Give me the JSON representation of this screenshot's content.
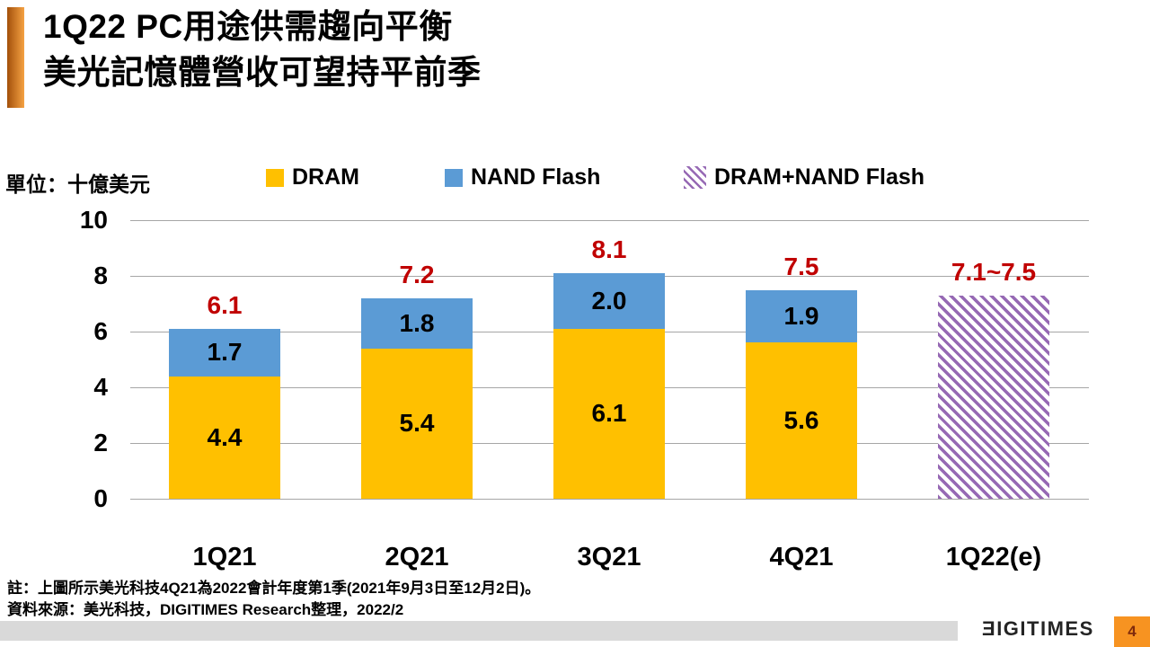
{
  "slide": {
    "title_line1": "1Q22 PC用途供需趨向平衡",
    "title_line2": "美光記憶體營收可望持平前季",
    "footnote_note": "註：上圖所示美光科技4Q21為2022會計年度第1季(2021年9月3日至12月2日)。",
    "footnote_source": "資料來源：美光科技，DIGITIMES Research整理，2022/2",
    "footer": {
      "logo_glyph": "Ǝ",
      "logo_text": "IGITIMES",
      "page_number": "4"
    }
  },
  "colors": {
    "dram": "#FFC000",
    "nand": "#5B9BD5",
    "total_label": "#C00000",
    "hatch_stripe": "#9669B4",
    "grid": "#A6A6A6",
    "accent_dark": "#A3500A",
    "accent_light": "#F5A243",
    "footer_bar": "#D9D9D9",
    "page_box": "#F79321",
    "page_number": "#7F2A0C",
    "logo": "#242424"
  },
  "chart_data": {
    "type": "bar",
    "stacked": true,
    "title": "",
    "ylabel": "單位：十億美元",
    "xlabel": "",
    "ylim": [
      0,
      10
    ],
    "yticks": [
      0,
      2,
      4,
      6,
      8,
      10
    ],
    "grid": true,
    "legend_position": "top",
    "categories": [
      "1Q21",
      "2Q21",
      "3Q21",
      "4Q21",
      "1Q22(e)"
    ],
    "series": [
      {
        "name": "DRAM",
        "style": "solid",
        "values": [
          4.4,
          5.4,
          6.1,
          5.6,
          null
        ],
        "labels": [
          "4.4",
          "5.4",
          "6.1",
          "5.6",
          null
        ]
      },
      {
        "name": "NAND Flash",
        "style": "solid",
        "values": [
          1.7,
          1.8,
          2.0,
          1.9,
          null
        ],
        "labels": [
          "1.7",
          "1.8",
          "2.0",
          "1.9",
          null
        ]
      },
      {
        "name": "DRAM+NAND Flash",
        "style": "diagonal-hatch",
        "values": [
          null,
          null,
          null,
          null,
          7.3
        ],
        "labels": [
          null,
          null,
          null,
          null,
          null
        ],
        "estimate_range": "7.1~7.5"
      }
    ],
    "total_labels": [
      "6.1",
      "7.2",
      "8.1",
      "7.5",
      "7.1~7.5"
    ]
  }
}
